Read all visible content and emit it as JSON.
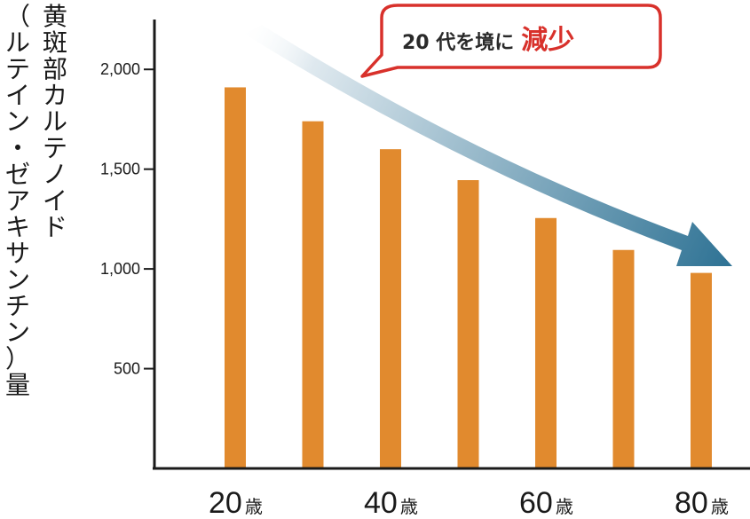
{
  "chart_data": {
    "type": "bar",
    "ylabel_main": "黄斑部カルテノイド",
    "ylabel_sub": "（ルテイン・ゼアキサンチン）量",
    "categories": [
      "20歳",
      "",
      "40歳",
      "",
      "60歳",
      "",
      "80歳"
    ],
    "x_tick_labels": [
      {
        "num": "20",
        "unit": "歳"
      },
      {
        "num": "40",
        "unit": "歳"
      },
      {
        "num": "60",
        "unit": "歳"
      },
      {
        "num": "80",
        "unit": "歳"
      }
    ],
    "values": [
      1910,
      1740,
      1600,
      1445,
      1255,
      1095,
      980
    ],
    "ylim": [
      0,
      2250
    ],
    "yticks": [
      500,
      1000,
      1500,
      2000
    ],
    "ytick_labels": [
      "500",
      "1,000",
      "1,500",
      "2,000"
    ],
    "bar_color": "#e18a2e",
    "grid": false,
    "callout": {
      "text": "20 代を境に",
      "emphasis": "減少",
      "emphasis_color": "#d8312b",
      "border_color": "#d8312b"
    },
    "trend_arrow": {
      "gradient_start": "#ffffff",
      "gradient_end": "#2e7294"
    }
  }
}
